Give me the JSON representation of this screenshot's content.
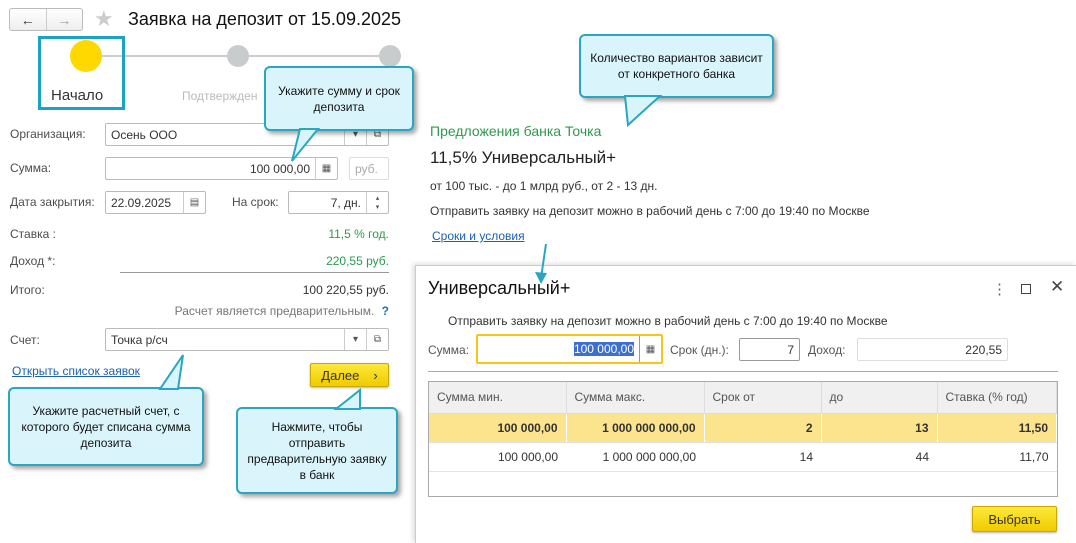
{
  "header": {
    "title": "Заявка на депозит от 15.09.2025"
  },
  "steps": [
    {
      "label": "Начало",
      "active": true
    },
    {
      "label": "Подтвержден"
    },
    {
      "label": ""
    }
  ],
  "form": {
    "org_label": "Организация:",
    "org_value": "Осень ООО",
    "sum_label": "Сумма:",
    "sum_value": "100 000,00",
    "currency": "руб.",
    "close_label": "Дата закрытия:",
    "close_value": "22.09.2025",
    "term_label": "На срок:",
    "term_value": "7, дн.",
    "rate_label": "Ставка :",
    "rate_value": "11,5 % год.",
    "income_label": "Доход *:",
    "income_value": "220,55 руб.",
    "total_label": "Итого:",
    "total_value": "100 220,55 руб.",
    "note": "Расчет является предварительным.",
    "help": "?",
    "account_label": "Счет:",
    "account_value": "Точка р/сч",
    "open_list_link": "Открыть список заявок",
    "next_button": "Далее",
    "next_arrow": "›"
  },
  "offer": {
    "bank_title": "Предложения банка Точка",
    "product": "11,5% Универсальный+",
    "conditions": "от 100 тыс. - до 1 млрд руб., от 2 - 13 дн.",
    "schedule": "Отправить заявку на депозит можно в рабочий день с 7:00 до 19:40 по Москве",
    "terms_link": "Сроки и условия"
  },
  "callouts": {
    "sum": "Укажите сумму и срок депозита",
    "account": "Укажите расчетный счет, с которого будет списана сумма депозита",
    "next": "Нажмите, чтобы отправить предварительную заявку в банк",
    "variants": "Количество вариантов зависит от конкретного банка"
  },
  "dialog": {
    "title": "Универсальный+",
    "schedule": "Отправить заявку на депозит можно в рабочий день с 7:00 до 19:40 по Москве",
    "sum_label": "Сумма:",
    "sum_value": "100 000,00",
    "term_label": "Срок (дн.):",
    "term_value": "7",
    "income_label": "Доход:",
    "income_value": "220,55",
    "columns": [
      "Сумма мин.",
      "Сумма макс.",
      "Срок от",
      "до",
      "Ставка (% год)"
    ],
    "rows": [
      [
        "100 000,00",
        "1 000 000 000,00",
        "2",
        "13",
        "11,50"
      ],
      [
        "100 000,00",
        "1 000 000 000,00",
        "14",
        "44",
        "11,70"
      ]
    ],
    "select_button": "Выбрать"
  },
  "colors": {
    "accent_yellow": "#ffd800",
    "callout_border": "#2aa6c0",
    "green": "#2e9a4e",
    "selected_row": "#fce48e"
  }
}
